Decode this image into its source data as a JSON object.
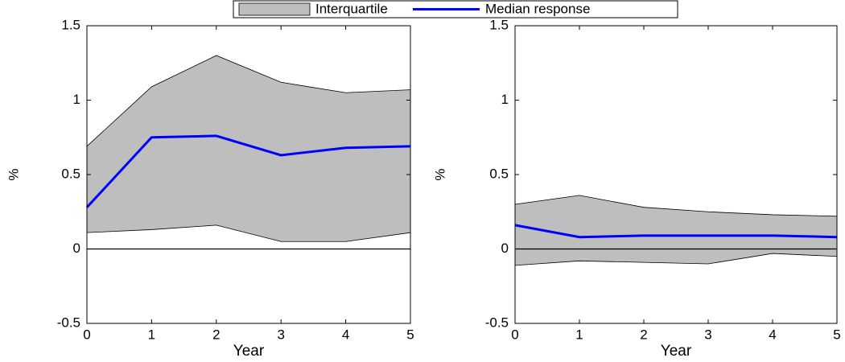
{
  "chart_data": [
    {
      "type": "line",
      "xlabel": "Year",
      "ylabel": "%",
      "x": [
        0,
        1,
        2,
        3,
        4,
        5
      ],
      "xlim": [
        0,
        5
      ],
      "ylim": [
        -0.5,
        1.5
      ],
      "xticks": [
        0,
        1,
        2,
        3,
        4,
        5
      ],
      "yticks": [
        -0.5,
        0,
        0.5,
        1,
        1.5
      ],
      "hline": 0,
      "series": [
        {
          "name": "Interquartile",
          "color": "#bebebe",
          "lower": [
            0.11,
            0.13,
            0.16,
            0.05,
            0.05,
            0.11
          ],
          "upper": [
            0.69,
            1.09,
            1.3,
            1.12,
            1.05,
            1.07
          ]
        },
        {
          "name": "Median response",
          "color": "#0000ff",
          "values": [
            0.28,
            0.75,
            0.76,
            0.63,
            0.68,
            0.69
          ]
        }
      ]
    },
    {
      "type": "line",
      "xlabel": "Year",
      "ylabel": "%",
      "x": [
        0,
        1,
        2,
        3,
        4,
        5
      ],
      "xlim": [
        0,
        5
      ],
      "ylim": [
        -0.5,
        1.5
      ],
      "xticks": [
        0,
        1,
        2,
        3,
        4,
        5
      ],
      "yticks": [
        -0.5,
        0,
        0.5,
        1,
        1.5
      ],
      "hline": 0,
      "series": [
        {
          "name": "Interquartile",
          "color": "#bebebe",
          "lower": [
            -0.11,
            -0.08,
            -0.09,
            -0.1,
            -0.03,
            -0.05
          ],
          "upper": [
            0.3,
            0.36,
            0.28,
            0.25,
            0.23,
            0.22
          ]
        },
        {
          "name": "Median response",
          "color": "#0000ff",
          "values": [
            0.16,
            0.08,
            0.09,
            0.09,
            0.09,
            0.08
          ]
        }
      ]
    }
  ]
}
